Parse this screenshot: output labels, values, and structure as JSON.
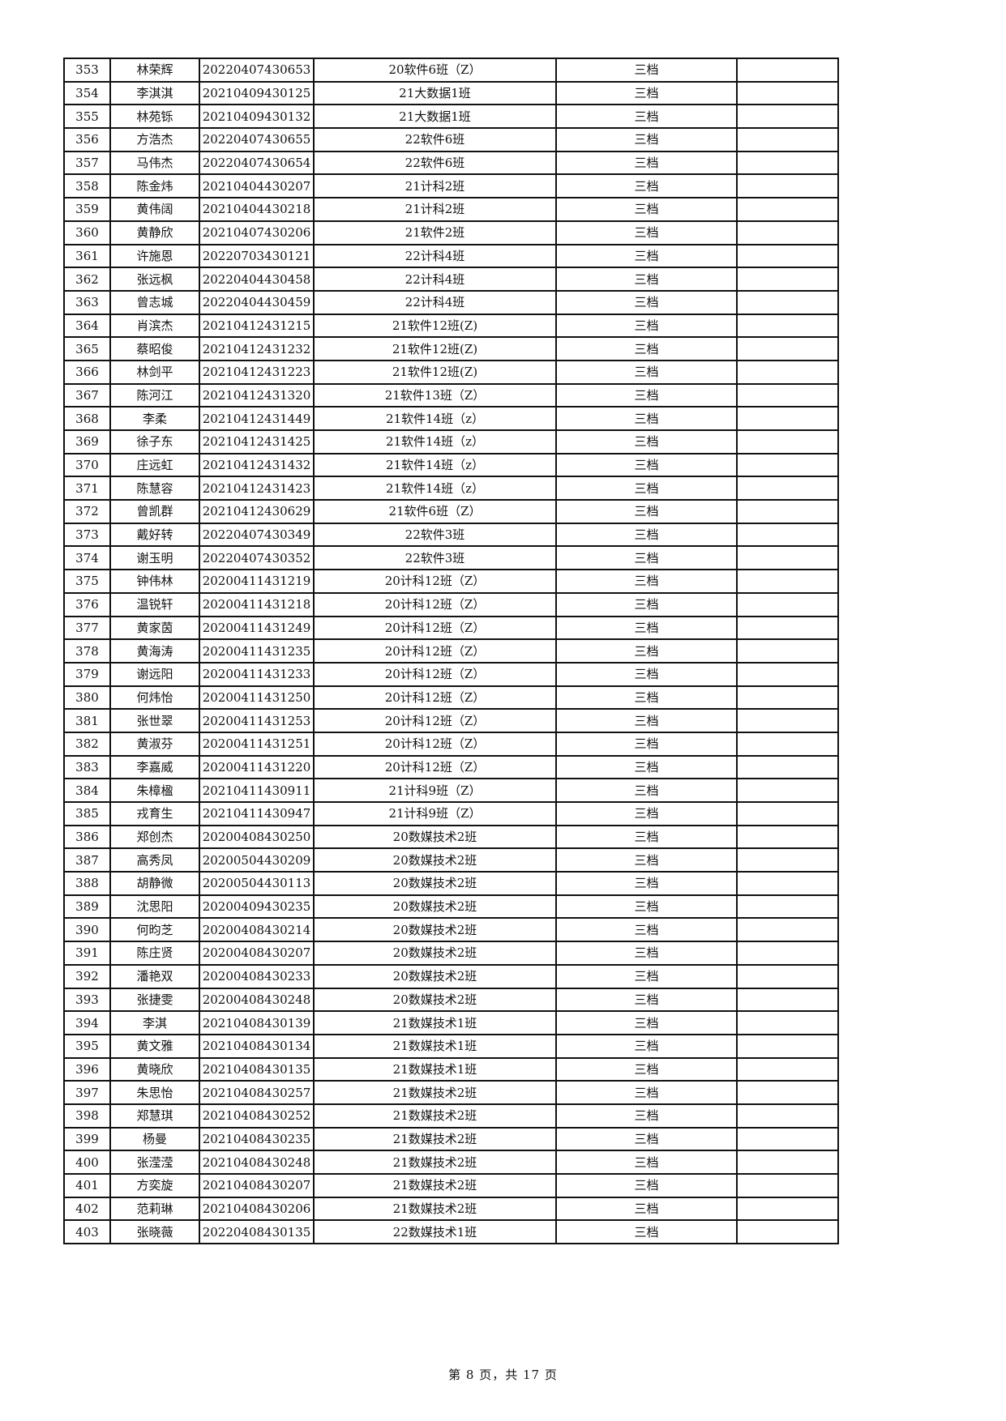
{
  "table": {
    "rows": [
      [
        "353",
        "林荣辉",
        "20220407430653",
        "20软件6班（Z）",
        "三档",
        ""
      ],
      [
        "354",
        "李淇淇",
        "20210409430125",
        "21大数据1班",
        "三档",
        ""
      ],
      [
        "355",
        "林苑铄",
        "20210409430132",
        "21大数据1班",
        "三档",
        ""
      ],
      [
        "356",
        "方浩杰",
        "20220407430655",
        "22软件6班",
        "三档",
        ""
      ],
      [
        "357",
        "马伟杰",
        "20220407430654",
        "22软件6班",
        "三档",
        ""
      ],
      [
        "358",
        "陈金炜",
        "20210404430207",
        "21计科2班",
        "三档",
        ""
      ],
      [
        "359",
        "黄伟阔",
        "20210404430218",
        "21计科2班",
        "三档",
        ""
      ],
      [
        "360",
        "黄静欣",
        "20210407430206",
        "21软件2班",
        "三档",
        ""
      ],
      [
        "361",
        "许施恩",
        "20220703430121",
        "22计科4班",
        "三档",
        ""
      ],
      [
        "362",
        "张远枫",
        "20220404430458",
        "22计科4班",
        "三档",
        ""
      ],
      [
        "363",
        "曾志城",
        "20220404430459",
        "22计科4班",
        "三档",
        ""
      ],
      [
        "364",
        "肖滨杰",
        "20210412431215",
        "21软件12班(Z)",
        "三档",
        ""
      ],
      [
        "365",
        "蔡昭俊",
        "20210412431232",
        "21软件12班(Z)",
        "三档",
        ""
      ],
      [
        "366",
        "林剑平",
        "20210412431223",
        "21软件12班(Z)",
        "三档",
        ""
      ],
      [
        "367",
        "陈河江",
        "20210412431320",
        "21软件13班（Z）",
        "三档",
        ""
      ],
      [
        "368",
        "李柔",
        "20210412431449",
        "21软件14班（z）",
        "三档",
        ""
      ],
      [
        "369",
        "徐子东",
        "20210412431425",
        "21软件14班（z）",
        "三档",
        ""
      ],
      [
        "370",
        "庄远虹",
        "20210412431432",
        "21软件14班（z）",
        "三档",
        ""
      ],
      [
        "371",
        "陈慧容",
        "20210412431423",
        "21软件14班（z）",
        "三档",
        ""
      ],
      [
        "372",
        "曾凯群",
        "20210412430629",
        "21软件6班（Z）",
        "三档",
        ""
      ],
      [
        "373",
        "戴好转",
        "20220407430349",
        "22软件3班",
        "三档",
        ""
      ],
      [
        "374",
        "谢玉明",
        "20220407430352",
        "22软件3班",
        "三档",
        ""
      ],
      [
        "375",
        "钟伟林",
        "20200411431219",
        "20计科12班（Z）",
        "三档",
        ""
      ],
      [
        "376",
        "温锐轩",
        "20200411431218",
        "20计科12班（Z）",
        "三档",
        ""
      ],
      [
        "377",
        "黄家茵",
        "20200411431249",
        "20计科12班（Z）",
        "三档",
        ""
      ],
      [
        "378",
        "黄海涛",
        "20200411431235",
        "20计科12班（Z）",
        "三档",
        ""
      ],
      [
        "379",
        "谢远阳",
        "20200411431233",
        "20计科12班（Z）",
        "三档",
        ""
      ],
      [
        "380",
        "何炜怡",
        "20200411431250",
        "20计科12班（Z）",
        "三档",
        ""
      ],
      [
        "381",
        "张世翠",
        "20200411431253",
        "20计科12班（Z）",
        "三档",
        ""
      ],
      [
        "382",
        "黄淑芬",
        "20200411431251",
        "20计科12班（Z）",
        "三档",
        ""
      ],
      [
        "383",
        "李嘉威",
        "20200411431220",
        "20计科12班（Z）",
        "三档",
        ""
      ],
      [
        "384",
        "朱樟楹",
        "20210411430911",
        "21计科9班（Z）",
        "三档",
        ""
      ],
      [
        "385",
        "戎育生",
        "20210411430947",
        "21计科9班（Z）",
        "三档",
        ""
      ],
      [
        "386",
        "郑创杰",
        "20200408430250",
        "20数媒技术2班",
        "三档",
        ""
      ],
      [
        "387",
        "高秀凤",
        "20200504430209",
        "20数媒技术2班",
        "三档",
        ""
      ],
      [
        "388",
        "胡静微",
        "20200504430113",
        "20数媒技术2班",
        "三档",
        ""
      ],
      [
        "389",
        "沈思阳",
        "20200409430235",
        "20数媒技术2班",
        "三档",
        ""
      ],
      [
        "390",
        "何昀芝",
        "20200408430214",
        "20数媒技术2班",
        "三档",
        ""
      ],
      [
        "391",
        "陈庄贤",
        "20200408430207",
        "20数媒技术2班",
        "三档",
        ""
      ],
      [
        "392",
        "潘艳双",
        "20200408430233",
        "20数媒技术2班",
        "三档",
        ""
      ],
      [
        "393",
        "张捷雯",
        "20200408430248",
        "20数媒技术2班",
        "三档",
        ""
      ],
      [
        "394",
        "李淇",
        "20210408430139",
        "21数媒技术1班",
        "三档",
        ""
      ],
      [
        "395",
        "黄文雅",
        "20210408430134",
        "21数媒技术1班",
        "三档",
        ""
      ],
      [
        "396",
        "黄晓欣",
        "20210408430135",
        "21数媒技术1班",
        "三档",
        ""
      ],
      [
        "397",
        "朱思怡",
        "20210408430257",
        "21数媒技术2班",
        "三档",
        ""
      ],
      [
        "398",
        "郑慧琪",
        "20210408430252",
        "21数媒技术2班",
        "三档",
        ""
      ],
      [
        "399",
        "杨曼",
        "20210408430235",
        "21数媒技术2班",
        "三档",
        ""
      ],
      [
        "400",
        "张滢滢",
        "20210408430248",
        "21数媒技术2班",
        "三档",
        ""
      ],
      [
        "401",
        "方奕旋",
        "20210408430207",
        "21数媒技术2班",
        "三档",
        ""
      ],
      [
        "402",
        "范莉琳",
        "20210408430206",
        "21数媒技术2班",
        "三档",
        ""
      ],
      [
        "403",
        "张晓薇",
        "20220408430135",
        "22数媒技术1班",
        "三档",
        ""
      ]
    ]
  },
  "footer": {
    "page_label": "第 8 页，共 17 页"
  }
}
